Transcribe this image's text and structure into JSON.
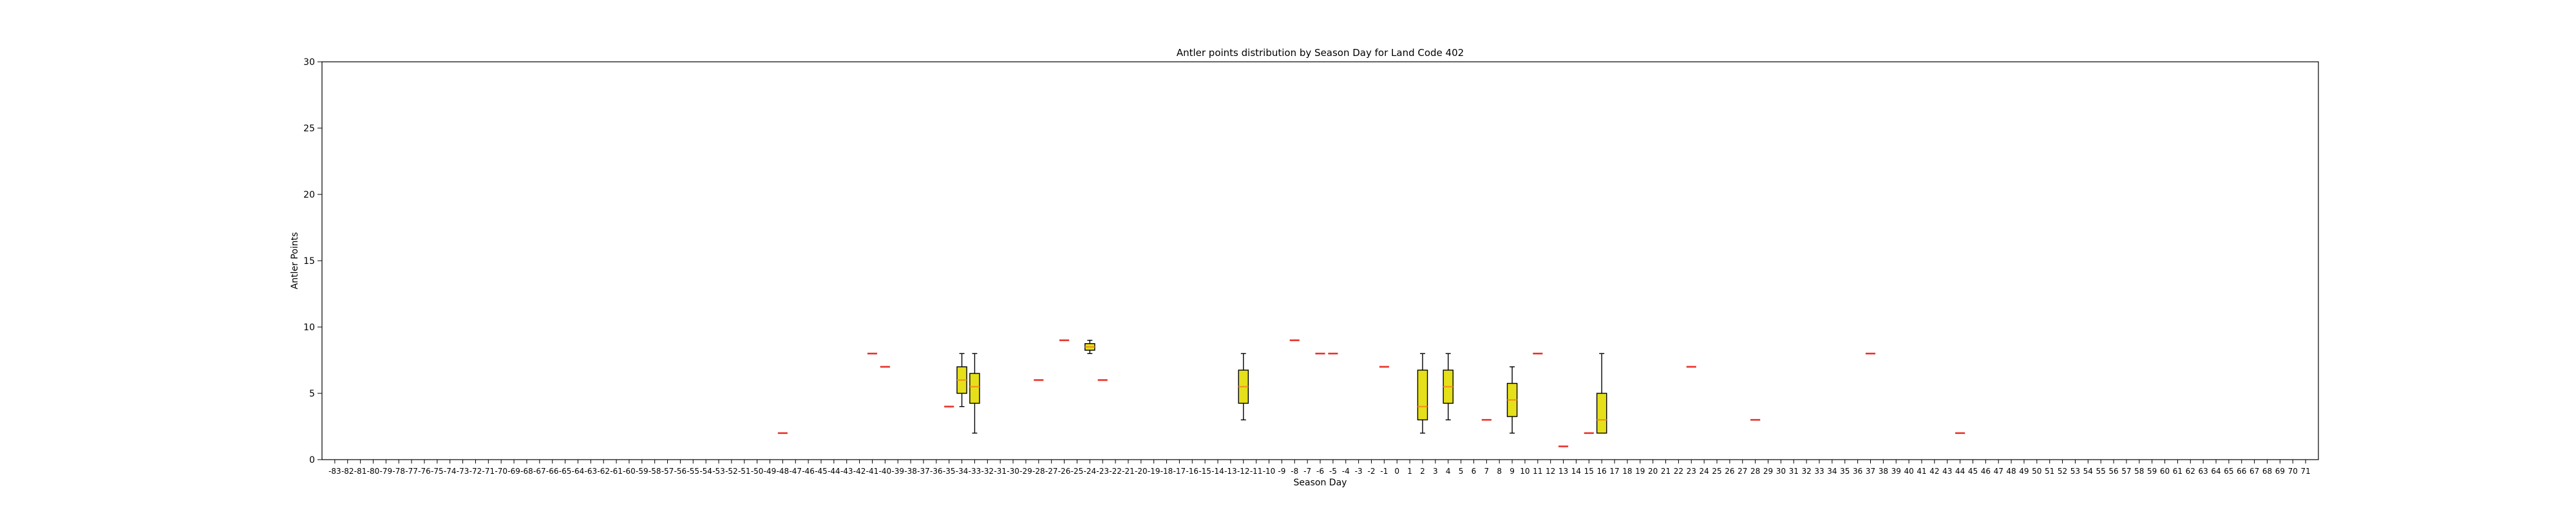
{
  "chart_data": {
    "type": "box",
    "title": "Antler points distribution by Season Day for Land Code 402",
    "xlabel": "Season Day",
    "ylabel": "Antler Points",
    "ylim": [
      0,
      30
    ],
    "yticks": [
      0,
      5,
      10,
      15,
      20,
      25,
      30
    ],
    "x_range": [
      -83,
      71
    ],
    "grid": false,
    "box_color": "#e5e01a",
    "median_color": "#f28e1c",
    "single_marker_color": "#e8332a",
    "boxes": [
      {
        "day": -34,
        "whislo": 4,
        "q1": 5,
        "med": 6,
        "q3": 7,
        "whishi": 8
      },
      {
        "day": -33,
        "whislo": 2,
        "q1": 4.25,
        "med": 5.5,
        "q3": 6.5,
        "whishi": 8
      },
      {
        "day": -24,
        "whislo": 8,
        "q1": 8.25,
        "med": 8.5,
        "q3": 8.75,
        "whishi": 9
      },
      {
        "day": -12,
        "whislo": 3,
        "q1": 4.25,
        "med": 5.5,
        "q3": 6.75,
        "whishi": 8
      },
      {
        "day": 2,
        "whislo": 2,
        "q1": 3,
        "med": 4,
        "q3": 6.75,
        "whishi": 8
      },
      {
        "day": 4,
        "whislo": 3,
        "q1": 4.25,
        "med": 5.5,
        "q3": 6.75,
        "whishi": 8
      },
      {
        "day": 9,
        "whislo": 2,
        "q1": 3.25,
        "med": 4.5,
        "q3": 5.75,
        "whishi": 7
      },
      {
        "day": 16,
        "whislo": 2,
        "q1": 2,
        "med": 3,
        "q3": 5,
        "whishi": 8
      }
    ],
    "single_points": [
      {
        "day": -48,
        "value": 2
      },
      {
        "day": -41,
        "value": 8
      },
      {
        "day": -40,
        "value": 7
      },
      {
        "day": -35,
        "value": 4
      },
      {
        "day": -28,
        "value": 6
      },
      {
        "day": -26,
        "value": 9
      },
      {
        "day": -23,
        "value": 6
      },
      {
        "day": -8,
        "value": 9
      },
      {
        "day": -6,
        "value": 8
      },
      {
        "day": -5,
        "value": 8
      },
      {
        "day": -1,
        "value": 7
      },
      {
        "day": 7,
        "value": 3
      },
      {
        "day": 11,
        "value": 8
      },
      {
        "day": 13,
        "value": 1
      },
      {
        "day": 15,
        "value": 2
      },
      {
        "day": 23,
        "value": 7
      },
      {
        "day": 28,
        "value": 3
      },
      {
        "day": 37,
        "value": 8
      },
      {
        "day": 44,
        "value": 2
      }
    ]
  }
}
